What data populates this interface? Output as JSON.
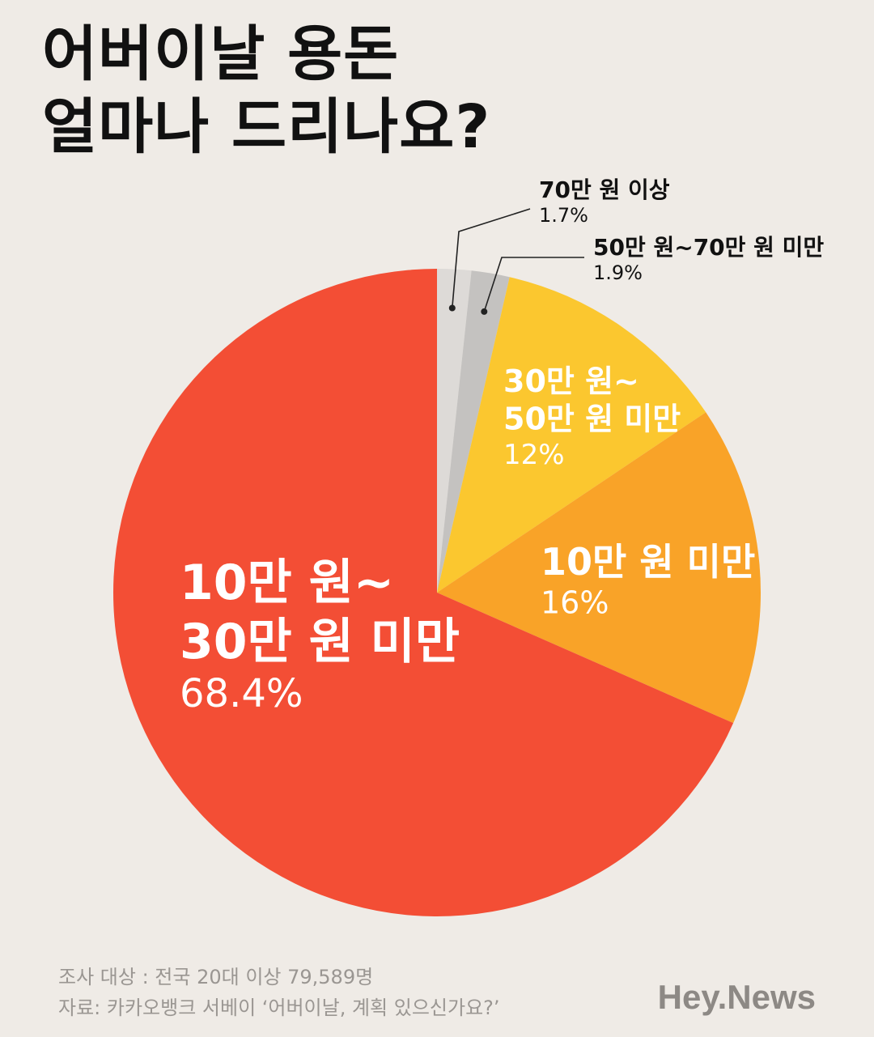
{
  "title": {
    "line1": "어버이날 용돈",
    "line2": "얼마나 드리나요?"
  },
  "chart_data": {
    "type": "pie",
    "start_angle_deg": 0,
    "direction": "clockwise",
    "slices": [
      {
        "label": "70만 원 이상",
        "value": 1.7,
        "value_label": "1.7%",
        "color": "#dddad7"
      },
      {
        "label": "50만 원~70만 원 미만",
        "value": 1.9,
        "value_label": "1.9%",
        "color": "#c4c2c0"
      },
      {
        "label": "30만 원~\n50만 원 미만",
        "value": 12,
        "value_label": "12%",
        "color": "#fbc72f"
      },
      {
        "label": "10만 원 미만",
        "value": 16,
        "value_label": "16%",
        "color": "#f9a328"
      },
      {
        "label": "10만 원~\n30만 원 미만",
        "value": 68.4,
        "value_label": "68.4%",
        "color": "#f34e35"
      }
    ]
  },
  "footer": {
    "survey": "조사 대상 : 전국 20대 이상 79,589명",
    "source": "자료: 카카오뱅크 서베이 ‘어버이날, 계획 있으신가요?’"
  },
  "brand": "Hey.News"
}
